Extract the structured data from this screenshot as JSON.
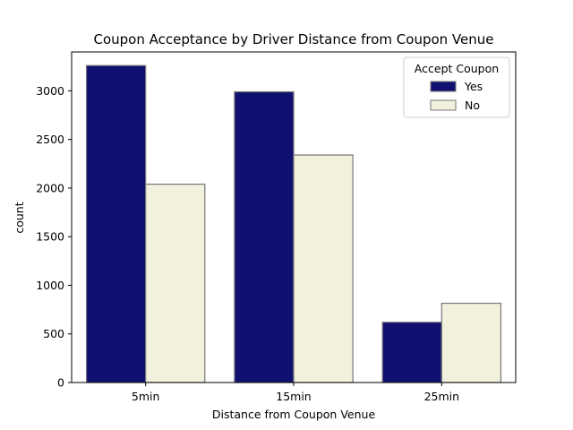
{
  "chart_data": {
    "type": "bar",
    "title": "Coupon Acceptance by Driver Distance from Coupon Venue",
    "xlabel": "Distance from Coupon Venue",
    "ylabel": "count",
    "categories": [
      "5min",
      "15min",
      "25min"
    ],
    "series": [
      {
        "name": "Yes",
        "values": [
          3260,
          2990,
          620
        ],
        "color": "#101070"
      },
      {
        "name": "No",
        "values": [
          2040,
          2340,
          815
        ],
        "color": "#f2f1dd"
      }
    ],
    "ylim": [
      0,
      3400
    ],
    "yticks": [
      0,
      500,
      1000,
      1500,
      2000,
      2500,
      3000
    ],
    "grid": false,
    "legend": {
      "title": "Accept Coupon",
      "placement": "top-right"
    },
    "bar_edge_color": "#777777"
  }
}
